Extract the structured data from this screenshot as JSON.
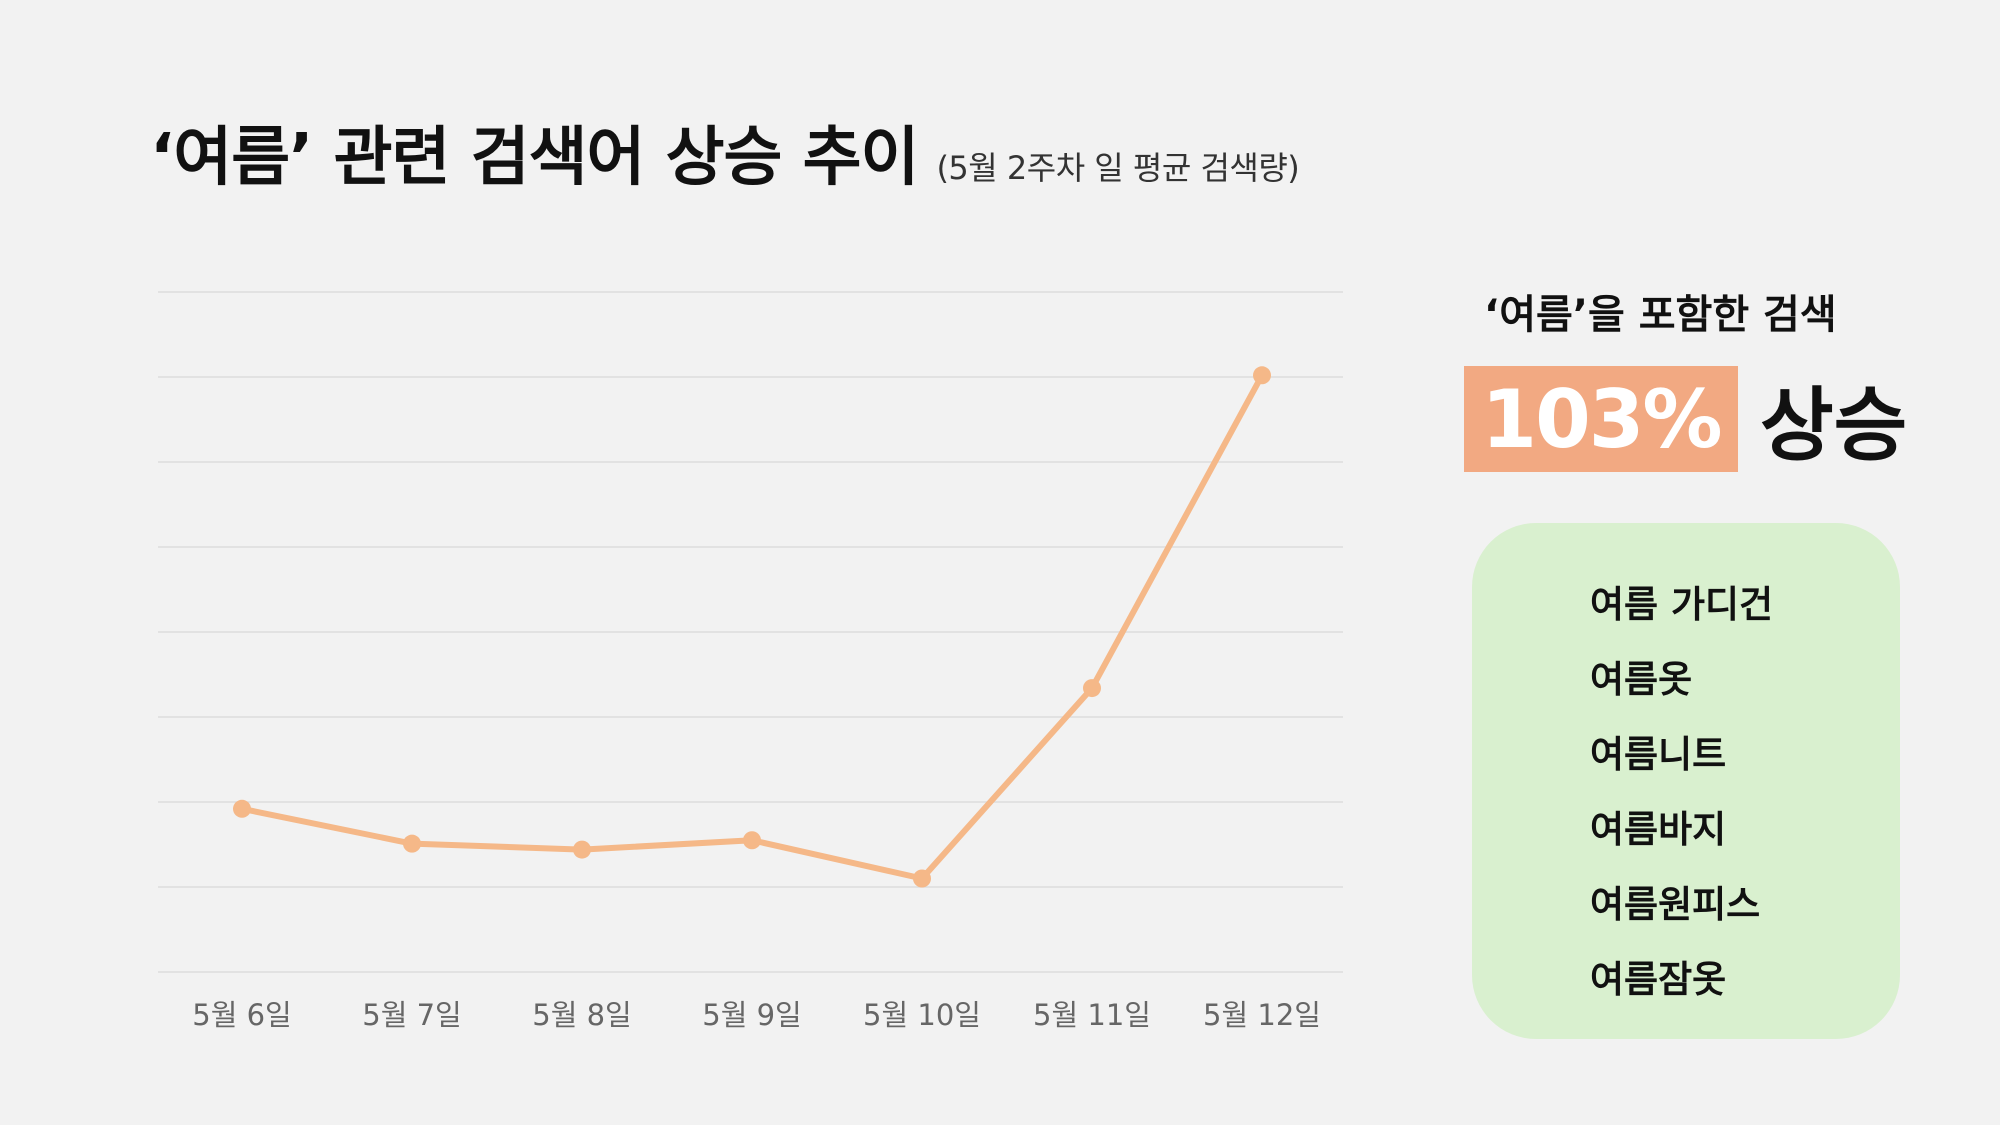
{
  "title": {
    "main": "‘여름’ 관련 검색어 상승 추이",
    "sub": "(5월 2주차 일 평균 검색량)"
  },
  "chart_data": {
    "type": "line",
    "categories": [
      "5월 6일",
      "5월 7일",
      "5월 8일",
      "5월 9일",
      "5월 10일",
      "5월 11일",
      "5월 12일"
    ],
    "series": [
      {
        "values": [
          0.192,
          0.151,
          0.144,
          0.155,
          0.11,
          0.334,
          0.702
        ]
      }
    ],
    "ylim": [
      0,
      0.8
    ],
    "gridlines": true,
    "line_color": "#f5b888",
    "grid_color": "#dddddd"
  },
  "highlight": {
    "caption": "‘여름’을 포함한 검색",
    "percent": "103%",
    "label": "상승",
    "box_color": "#f2a982"
  },
  "keywords": {
    "panel_color": "#d9f0cf",
    "items": [
      "여름 가디건",
      "여름옷",
      "여름니트",
      "여름바지",
      "여름원피스",
      "여름잠옷"
    ]
  }
}
